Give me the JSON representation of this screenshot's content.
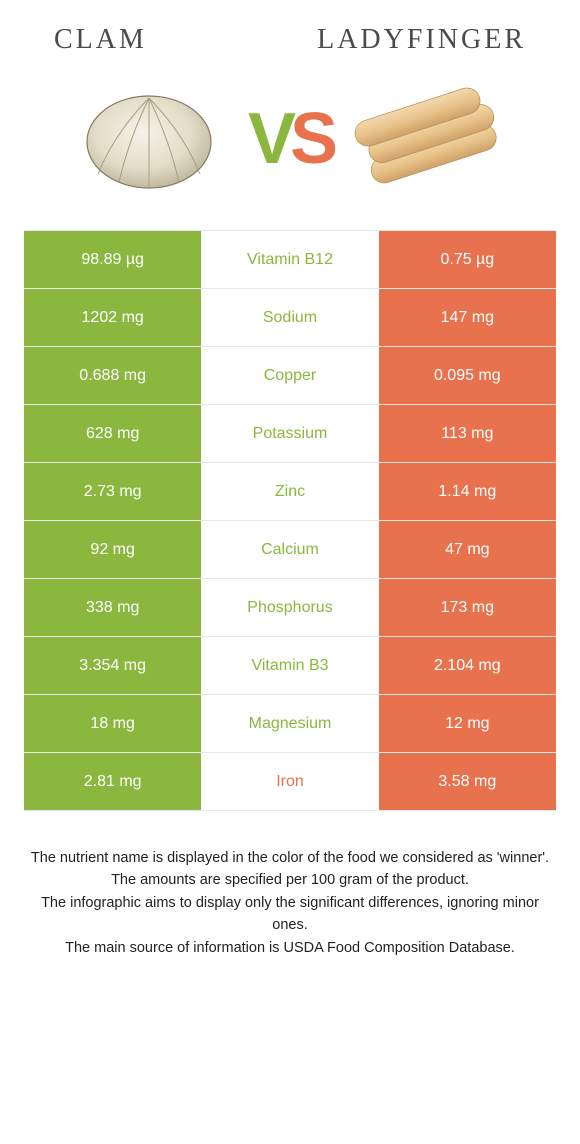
{
  "colors": {
    "green": "#8bb73e",
    "orange": "#e8724d",
    "row_border": "#e6e6e6"
  },
  "titles": {
    "left": "Clam",
    "right": "Ladyfinger"
  },
  "vs": {
    "v": "V",
    "s": "S"
  },
  "hero_icons": {
    "left": "clam-icon",
    "right": "ladyfinger-icon"
  },
  "table": {
    "rows": [
      {
        "left": "98.89 µg",
        "label": "Vitamin B12",
        "right": "0.75 µg",
        "winner": "left"
      },
      {
        "left": "1202 mg",
        "label": "Sodium",
        "right": "147 mg",
        "winner": "left"
      },
      {
        "left": "0.688 mg",
        "label": "Copper",
        "right": "0.095 mg",
        "winner": "left"
      },
      {
        "left": "628 mg",
        "label": "Potassium",
        "right": "113 mg",
        "winner": "left"
      },
      {
        "left": "2.73 mg",
        "label": "Zinc",
        "right": "1.14 mg",
        "winner": "left"
      },
      {
        "left": "92 mg",
        "label": "Calcium",
        "right": "47 mg",
        "winner": "left"
      },
      {
        "left": "338 mg",
        "label": "Phosphorus",
        "right": "173 mg",
        "winner": "left"
      },
      {
        "left": "3.354 mg",
        "label": "Vitamin B3",
        "right": "2.104 mg",
        "winner": "left"
      },
      {
        "left": "18 mg",
        "label": "Magnesium",
        "right": "12 mg",
        "winner": "left"
      },
      {
        "left": "2.81 mg",
        "label": "Iron",
        "right": "3.58 mg",
        "winner": "right"
      }
    ]
  },
  "footer": {
    "l1": "The nutrient name is displayed in the color of the food we considered as 'winner'.",
    "l2": "The amounts are specified per 100 gram of the product.",
    "l3": "The infographic aims to display only the significant differences, ignoring minor ones.",
    "l4": "The main source of information is USDA Food Composition Database."
  }
}
